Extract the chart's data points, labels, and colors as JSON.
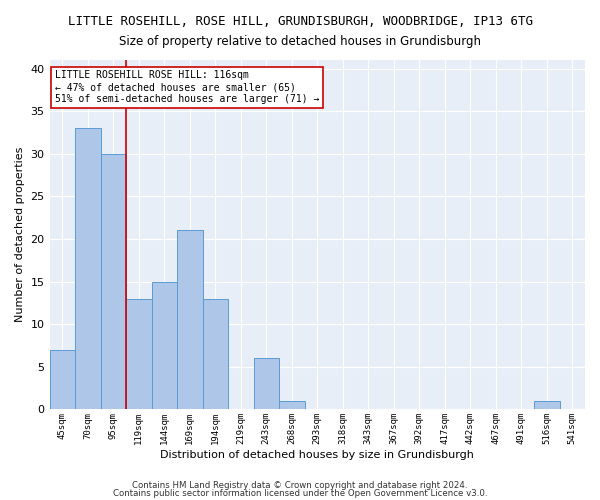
{
  "title": "LITTLE ROSEHILL, ROSE HILL, GRUNDISBURGH, WOODBRIDGE, IP13 6TG",
  "subtitle": "Size of property relative to detached houses in Grundisburgh",
  "xlabel": "Distribution of detached houses by size in Grundisburgh",
  "ylabel": "Number of detached properties",
  "footnote1": "Contains HM Land Registry data © Crown copyright and database right 2024.",
  "footnote2": "Contains public sector information licensed under the Open Government Licence v3.0.",
  "categories": [
    "45sqm",
    "70sqm",
    "95sqm",
    "119sqm",
    "144sqm",
    "169sqm",
    "194sqm",
    "219sqm",
    "243sqm",
    "268sqm",
    "293sqm",
    "318sqm",
    "343sqm",
    "367sqm",
    "392sqm",
    "417sqm",
    "442sqm",
    "467sqm",
    "491sqm",
    "516sqm",
    "541sqm"
  ],
  "values": [
    7,
    33,
    30,
    13,
    15,
    21,
    13,
    0,
    6,
    1,
    0,
    0,
    0,
    0,
    0,
    0,
    0,
    0,
    0,
    1,
    0
  ],
  "bar_color": "#aec6e8",
  "bar_edge_color": "#5b9bd5",
  "reference_line_x": 2.5,
  "reference_line_color": "#cc0000",
  "annotation_line1": "LITTLE ROSEHILL ROSE HILL: 116sqm",
  "annotation_line2": "← 47% of detached houses are smaller (65)",
  "annotation_line3": "51% of semi-detached houses are larger (71) →",
  "annotation_box_color": "#ffffff",
  "annotation_box_edge_color": "#cc0000",
  "ylim": [
    0,
    41
  ],
  "yticks": [
    0,
    5,
    10,
    15,
    20,
    25,
    30,
    35,
    40
  ],
  "background_color": "#e8eef7",
  "title_fontsize": 9,
  "subtitle_fontsize": 8.5,
  "bar_width": 1.0
}
